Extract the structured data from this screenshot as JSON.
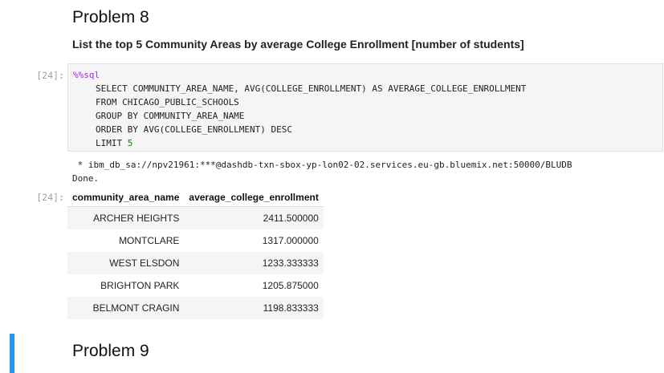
{
  "problem8": {
    "title": "Problem 8",
    "description": "List the top 5 Community Areas by average College Enrollment [number of students]"
  },
  "code_cell": {
    "prompt": "[24]:",
    "magic": "%%sql",
    "lines": [
      "SELECT COMMUNITY_AREA_NAME, AVG(COLLEGE_ENROLLMENT) AS AVERAGE_COLLEGE_ENROLLMENT",
      "FROM CHICAGO_PUBLIC_SCHOOLS",
      "GROUP BY COMMUNITY_AREA_NAME",
      "ORDER BY AVG(COLLEGE_ENROLLMENT) DESC"
    ],
    "limit_keyword": "LIMIT ",
    "limit_value": "5"
  },
  "stdout": {
    "connection": " * ibm_db_sa://npv21961:***@dashdb-txn-sbox-yp-lon02-02.services.eu-gb.bluemix.net:50000/BLUDB",
    "done": "Done."
  },
  "output": {
    "prompt": "[24]:",
    "columns": [
      "community_area_name",
      "average_college_enrollment"
    ],
    "rows": [
      [
        "ARCHER HEIGHTS",
        "2411.500000"
      ],
      [
        "MONTCLARE",
        "1317.000000"
      ],
      [
        "WEST ELSDON",
        "1233.333333"
      ],
      [
        "BRIGHTON PARK",
        "1205.875000"
      ],
      [
        "BELMONT CRAGIN",
        "1198.833333"
      ]
    ]
  },
  "problem9": {
    "title": "Problem 9"
  },
  "colors": {
    "magic": "#aa22ff",
    "number": "#008800",
    "active_cell_bar": "#2196f3"
  }
}
